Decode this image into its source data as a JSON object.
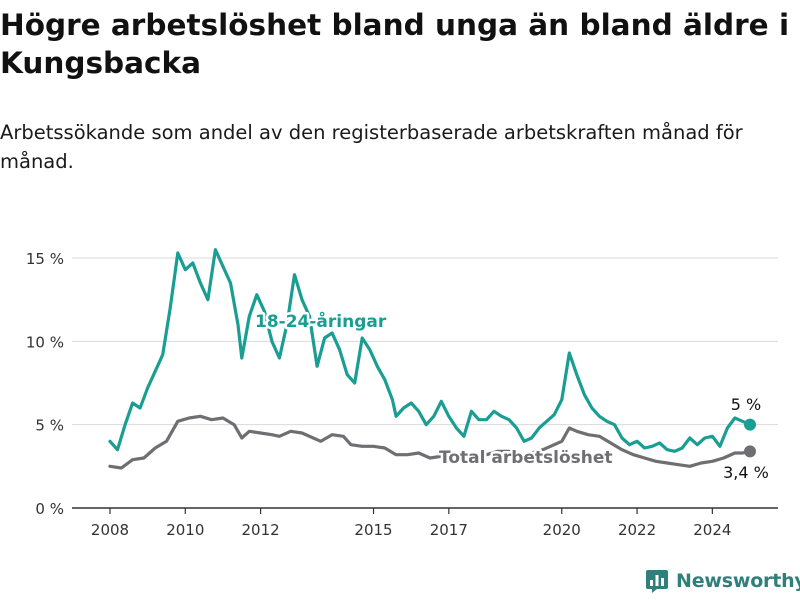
{
  "page": {
    "title": "Högre arbetslöshet bland unga än bland äldre i Kungsbacka",
    "subtitle": "Arbetssökande som andel av den registerbaserade arbetskraften månad för månad.",
    "brand": "Newsworthy"
  },
  "colors": {
    "youth": "#1a9e93",
    "total": "#6e6e73",
    "grid": "#d9d9d9",
    "axis": "#333333",
    "brand": "#2f7f7a"
  },
  "chart_data": {
    "type": "line",
    "title": "Högre arbetslöshet bland unga än bland äldre i Kungsbacka",
    "subtitle": "Arbetssökande som andel av den registerbaserade arbetskraften månad för månad.",
    "xlabel": "",
    "ylabel": "",
    "ylim": [
      0,
      15
    ],
    "xlim": [
      2007.9,
      2025.4
    ],
    "yticks": [
      0,
      5,
      10,
      15
    ],
    "ytick_labels": [
      "0 %",
      "5 %",
      "10 %",
      "15 %"
    ],
    "xticks": [
      2008,
      2010,
      2012,
      2015,
      2017,
      2020,
      2022,
      2024
    ],
    "xtick_labels": [
      "2008",
      "2010",
      "2012",
      "2015",
      "2017",
      "2020",
      "2022",
      "2024"
    ],
    "grid": true,
    "series": [
      {
        "name": "18-24-åringar",
        "end_label": "5 %",
        "points": [
          [
            2008.0,
            4.0
          ],
          [
            2008.2,
            3.5
          ],
          [
            2008.4,
            5.0
          ],
          [
            2008.6,
            6.3
          ],
          [
            2008.8,
            6.0
          ],
          [
            2009.0,
            7.2
          ],
          [
            2009.2,
            8.2
          ],
          [
            2009.4,
            9.2
          ],
          [
            2009.6,
            12.0
          ],
          [
            2009.8,
            15.3
          ],
          [
            2010.0,
            14.3
          ],
          [
            2010.2,
            14.7
          ],
          [
            2010.4,
            13.5
          ],
          [
            2010.6,
            12.5
          ],
          [
            2010.8,
            15.5
          ],
          [
            2011.0,
            14.5
          ],
          [
            2011.2,
            13.5
          ],
          [
            2011.4,
            11.0
          ],
          [
            2011.5,
            9.0
          ],
          [
            2011.7,
            11.5
          ],
          [
            2011.9,
            12.8
          ],
          [
            2012.1,
            11.8
          ],
          [
            2012.3,
            10.0
          ],
          [
            2012.5,
            9.0
          ],
          [
            2012.7,
            11.0
          ],
          [
            2012.9,
            14.0
          ],
          [
            2013.1,
            12.5
          ],
          [
            2013.3,
            11.5
          ],
          [
            2013.5,
            8.5
          ],
          [
            2013.7,
            10.2
          ],
          [
            2013.9,
            10.5
          ],
          [
            2014.1,
            9.5
          ],
          [
            2014.3,
            8.0
          ],
          [
            2014.5,
            7.5
          ],
          [
            2014.7,
            10.2
          ],
          [
            2014.9,
            9.5
          ],
          [
            2015.1,
            8.5
          ],
          [
            2015.3,
            7.7
          ],
          [
            2015.5,
            6.5
          ],
          [
            2015.6,
            5.5
          ],
          [
            2015.8,
            6.0
          ],
          [
            2016.0,
            6.3
          ],
          [
            2016.2,
            5.8
          ],
          [
            2016.4,
            5.0
          ],
          [
            2016.6,
            5.5
          ],
          [
            2016.8,
            6.4
          ],
          [
            2017.0,
            5.5
          ],
          [
            2017.2,
            4.8
          ],
          [
            2017.4,
            4.3
          ],
          [
            2017.6,
            5.8
          ],
          [
            2017.8,
            5.3
          ],
          [
            2018.0,
            5.3
          ],
          [
            2018.2,
            5.8
          ],
          [
            2018.4,
            5.5
          ],
          [
            2018.6,
            5.3
          ],
          [
            2018.8,
            4.8
          ],
          [
            2019.0,
            4.0
          ],
          [
            2019.2,
            4.2
          ],
          [
            2019.4,
            4.8
          ],
          [
            2019.6,
            5.2
          ],
          [
            2019.8,
            5.6
          ],
          [
            2020.0,
            6.5
          ],
          [
            2020.2,
            9.3
          ],
          [
            2020.4,
            8.0
          ],
          [
            2020.6,
            6.8
          ],
          [
            2020.8,
            6.0
          ],
          [
            2021.0,
            5.5
          ],
          [
            2021.2,
            5.2
          ],
          [
            2021.4,
            5.0
          ],
          [
            2021.6,
            4.2
          ],
          [
            2021.8,
            3.8
          ],
          [
            2022.0,
            4.0
          ],
          [
            2022.2,
            3.6
          ],
          [
            2022.4,
            3.7
          ],
          [
            2022.6,
            3.9
          ],
          [
            2022.8,
            3.5
          ],
          [
            2023.0,
            3.4
          ],
          [
            2023.2,
            3.6
          ],
          [
            2023.4,
            4.2
          ],
          [
            2023.6,
            3.8
          ],
          [
            2023.8,
            4.2
          ],
          [
            2024.0,
            4.3
          ],
          [
            2024.2,
            3.7
          ],
          [
            2024.4,
            4.8
          ],
          [
            2024.6,
            5.4
          ],
          [
            2024.8,
            5.2
          ],
          [
            2025.0,
            5.0
          ]
        ]
      },
      {
        "name": "Total arbetslöshet",
        "end_label": "3,4 %",
        "points": [
          [
            2008.0,
            2.5
          ],
          [
            2008.3,
            2.4
          ],
          [
            2008.6,
            2.9
          ],
          [
            2008.9,
            3.0
          ],
          [
            2009.2,
            3.6
          ],
          [
            2009.5,
            4.0
          ],
          [
            2009.8,
            5.2
          ],
          [
            2010.1,
            5.4
          ],
          [
            2010.4,
            5.5
          ],
          [
            2010.7,
            5.3
          ],
          [
            2011.0,
            5.4
          ],
          [
            2011.3,
            5.0
          ],
          [
            2011.5,
            4.2
          ],
          [
            2011.7,
            4.6
          ],
          [
            2012.0,
            4.5
          ],
          [
            2012.3,
            4.4
          ],
          [
            2012.5,
            4.3
          ],
          [
            2012.8,
            4.6
          ],
          [
            2013.1,
            4.5
          ],
          [
            2013.4,
            4.2
          ],
          [
            2013.6,
            4.0
          ],
          [
            2013.9,
            4.4
          ],
          [
            2014.2,
            4.3
          ],
          [
            2014.4,
            3.8
          ],
          [
            2014.7,
            3.7
          ],
          [
            2015.0,
            3.7
          ],
          [
            2015.3,
            3.6
          ],
          [
            2015.6,
            3.2
          ],
          [
            2015.9,
            3.2
          ],
          [
            2016.2,
            3.3
          ],
          [
            2016.5,
            3.0
          ],
          [
            2016.8,
            3.1
          ],
          [
            2017.1,
            3.0
          ],
          [
            2017.4,
            3.1
          ],
          [
            2017.7,
            3.1
          ],
          [
            2018.0,
            3.2
          ],
          [
            2018.3,
            3.4
          ],
          [
            2018.6,
            3.4
          ],
          [
            2018.9,
            3.0
          ],
          [
            2019.2,
            3.3
          ],
          [
            2019.5,
            3.5
          ],
          [
            2019.8,
            3.8
          ],
          [
            2020.0,
            4.0
          ],
          [
            2020.2,
            4.8
          ],
          [
            2020.4,
            4.6
          ],
          [
            2020.7,
            4.4
          ],
          [
            2021.0,
            4.3
          ],
          [
            2021.3,
            3.9
          ],
          [
            2021.6,
            3.5
          ],
          [
            2021.9,
            3.2
          ],
          [
            2022.2,
            3.0
          ],
          [
            2022.5,
            2.8
          ],
          [
            2022.8,
            2.7
          ],
          [
            2023.1,
            2.6
          ],
          [
            2023.4,
            2.5
          ],
          [
            2023.7,
            2.7
          ],
          [
            2024.0,
            2.8
          ],
          [
            2024.3,
            3.0
          ],
          [
            2024.6,
            3.3
          ],
          [
            2024.8,
            3.3
          ],
          [
            2025.0,
            3.4
          ]
        ]
      }
    ]
  }
}
